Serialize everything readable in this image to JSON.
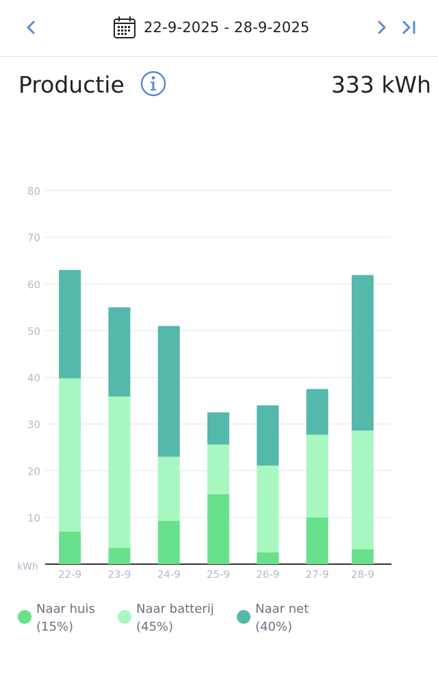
{
  "nav": {
    "date_range": "22-9-2025 - 28-9-2025",
    "prev_icon": "chevron-left-icon",
    "next_icon": "chevron-right-icon",
    "last_icon": "skip-to-end-icon",
    "calendar_icon": "calendar-icon"
  },
  "header": {
    "title": "Productie",
    "info_icon": "info-icon",
    "total": "333 kWh"
  },
  "colors": {
    "accent": "#5b86d6",
    "naar_huis": "#69e08c",
    "naar_batterij": "#a8f7c1",
    "naar_net": "#54b8aa",
    "grid": "#e4e4ea",
    "axis": "#333333",
    "tick": "#b4b8cc"
  },
  "legend": [
    {
      "label": "Naar huis",
      "pct": "(15%)",
      "color": "#69e08c"
    },
    {
      "label": "Naar batterij",
      "pct": "(45%)",
      "color": "#a8f7c1"
    },
    {
      "label": "Naar net",
      "pct": "(40%)",
      "color": "#54b8aa"
    }
  ],
  "chart_data": {
    "type": "bar",
    "stacked": true,
    "categories": [
      "22-9",
      "23-9",
      "24-9",
      "25-9",
      "26-9",
      "27-9",
      "28-9"
    ],
    "series": [
      {
        "name": "Naar huis",
        "color": "#69e08c",
        "values": [
          7,
          3.5,
          9.3,
          15,
          2.5,
          10,
          3.2
        ]
      },
      {
        "name": "Naar batterij",
        "color": "#a8f7c1",
        "values": [
          32.8,
          32.4,
          13.7,
          10.6,
          18.6,
          17.7,
          25.4
        ]
      },
      {
        "name": "Naar net",
        "color": "#54b8aa",
        "values": [
          23.2,
          19.1,
          28,
          6.9,
          12.9,
          9.8,
          33.3
        ]
      }
    ],
    "ylabel": "kWh",
    "yticks": [
      10,
      20,
      30,
      40,
      50,
      60,
      70,
      80
    ],
    "ylim": [
      0,
      80
    ],
    "grid": true,
    "legend_position": "bottom"
  }
}
